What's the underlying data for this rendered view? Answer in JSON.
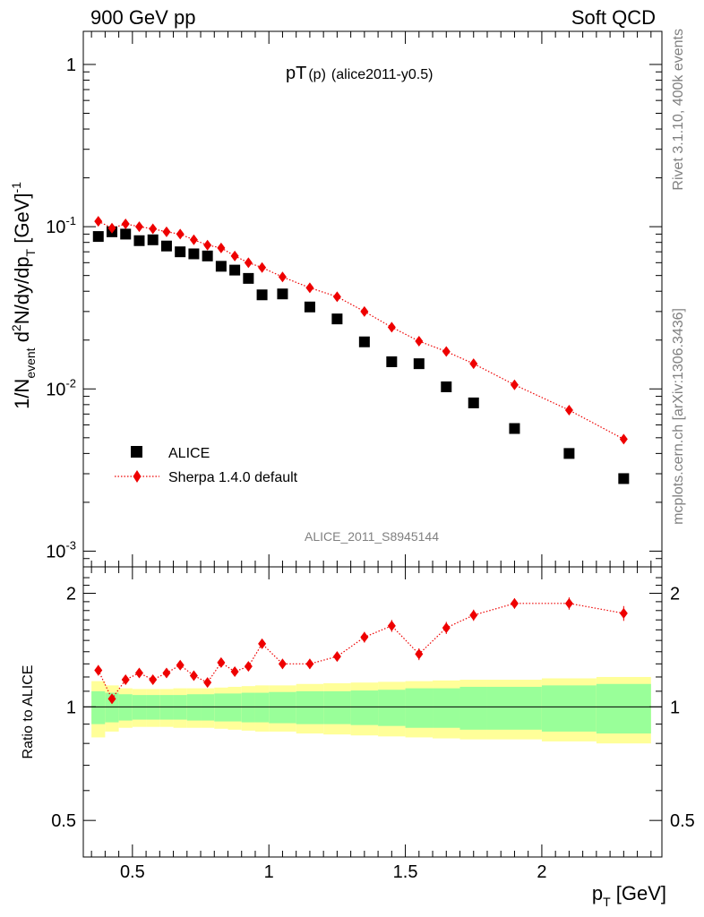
{
  "header": {
    "left": "900 GeV pp",
    "right": "Soft QCD"
  },
  "side": {
    "rivet": "Rivet 3.1.10,  400k events",
    "mcplots": "mcplots.cern.ch [arXiv:1306.3436]"
  },
  "chart_data": [
    {
      "type": "scatter",
      "title_main": "pT",
      "title_paren": "(p)",
      "title_rest": "(alice2011-y0.5)",
      "analysis_id": "ALICE_2011_S8945144",
      "ylabel": "1/N_event d²N/dy/dp_T [GeV]⁻¹",
      "ylabel_parts": {
        "main_a": "1/N",
        "sub_a": "event",
        "main_b": " d",
        "sup_b": "2",
        "main_c": "N/dy/dp",
        "sub_c": "T",
        "main_d": " [GeV]",
        "sup_d": "-1"
      },
      "yscale": "log",
      "ylim": [
        0.0008,
        1.6
      ],
      "xlim": [
        0.32,
        2.44
      ],
      "ytick_labels": [
        {
          "base": "10",
          "exp": "-3"
        },
        {
          "base": "10",
          "exp": "-2"
        },
        {
          "base": "10",
          "exp": "-1"
        },
        {
          "base": "1",
          "exp": ""
        }
      ],
      "legend_position": "lower-left",
      "series": [
        {
          "name": "ALICE",
          "marker": "square",
          "color": "#000000",
          "x": [
            0.375,
            0.425,
            0.475,
            0.525,
            0.575,
            0.625,
            0.675,
            0.725,
            0.775,
            0.825,
            0.875,
            0.925,
            0.975,
            1.05,
            1.15,
            1.25,
            1.35,
            1.45,
            1.55,
            1.65,
            1.75,
            1.9,
            2.1,
            2.3
          ],
          "y": [
            0.087,
            0.093,
            0.09,
            0.082,
            0.083,
            0.076,
            0.07,
            0.068,
            0.066,
            0.057,
            0.054,
            0.048,
            0.038,
            0.0385,
            0.032,
            0.027,
            0.0195,
            0.0147,
            0.0143,
            0.0103,
            0.0082,
            0.0057,
            0.004,
            0.0028
          ]
        },
        {
          "name": "Sherpa 1.4.0 default",
          "marker": "diamond",
          "color": "#ee0000",
          "linestyle": "dotted",
          "x": [
            0.375,
            0.425,
            0.475,
            0.525,
            0.575,
            0.625,
            0.675,
            0.725,
            0.775,
            0.825,
            0.875,
            0.925,
            0.975,
            1.05,
            1.15,
            1.25,
            1.35,
            1.45,
            1.55,
            1.65,
            1.75,
            1.9,
            2.1,
            2.3
          ],
          "y": [
            0.108,
            0.098,
            0.104,
            0.1,
            0.097,
            0.093,
            0.09,
            0.083,
            0.077,
            0.074,
            0.066,
            0.06,
            0.056,
            0.049,
            0.042,
            0.037,
            0.03,
            0.024,
            0.0197,
            0.017,
            0.0143,
            0.0106,
            0.0074,
            0.0049
          ]
        }
      ]
    },
    {
      "type": "scatter",
      "ylabel": "Ratio to ALICE",
      "xlabel_main": "p",
      "xlabel_sub": "T",
      "xlabel_unit": " [GeV]",
      "yscale": "log",
      "ylim": [
        0.4,
        2.35
      ],
      "xlim": [
        0.32,
        2.44
      ],
      "xticks": [
        0.5,
        1.0,
        1.5,
        2.0
      ],
      "xtick_labels": [
        "0.5",
        "1",
        "1.5",
        "2"
      ],
      "yticks": [
        0.5,
        1,
        2
      ],
      "ytick_labels": [
        "0.5",
        "1",
        "2"
      ],
      "reference_line": 1,
      "bins": {
        "edges": [
          0.35,
          0.4,
          0.45,
          0.5,
          0.55,
          0.6,
          0.65,
          0.7,
          0.75,
          0.8,
          0.85,
          0.9,
          0.95,
          1.0,
          1.1,
          1.2,
          1.3,
          1.4,
          1.5,
          1.6,
          1.7,
          1.8,
          2.0,
          2.2,
          2.4
        ],
        "stat_band": [
          0.1,
          0.09,
          0.08,
          0.075,
          0.075,
          0.075,
          0.075,
          0.08,
          0.08,
          0.085,
          0.085,
          0.09,
          0.09,
          0.095,
          0.1,
          0.1,
          0.105,
          0.11,
          0.12,
          0.12,
          0.13,
          0.13,
          0.14,
          0.15
        ],
        "total_band": [
          0.17,
          0.14,
          0.12,
          0.115,
          0.115,
          0.115,
          0.12,
          0.12,
          0.12,
          0.125,
          0.13,
          0.135,
          0.14,
          0.14,
          0.15,
          0.155,
          0.16,
          0.165,
          0.17,
          0.175,
          0.18,
          0.18,
          0.19,
          0.2
        ]
      },
      "band_colors": {
        "stat": "#99ff99",
        "total": "#ffff99"
      },
      "series": [
        {
          "name": "Sherpa 1.4.0 default / ALICE",
          "marker": "diamond",
          "color": "#ee0000",
          "x": [
            0.375,
            0.425,
            0.475,
            0.525,
            0.575,
            0.625,
            0.675,
            0.725,
            0.775,
            0.825,
            0.875,
            0.925,
            0.975,
            1.05,
            1.15,
            1.25,
            1.35,
            1.45,
            1.55,
            1.65,
            1.75,
            1.9,
            2.1,
            2.3
          ],
          "y": [
            1.25,
            1.05,
            1.18,
            1.23,
            1.18,
            1.23,
            1.29,
            1.21,
            1.16,
            1.31,
            1.24,
            1.28,
            1.47,
            1.3,
            1.3,
            1.36,
            1.53,
            1.64,
            1.38,
            1.62,
            1.75,
            1.88,
            1.88,
            1.77
          ],
          "err": [
            0.04,
            0.03,
            0.03,
            0.03,
            0.03,
            0.03,
            0.03,
            0.03,
            0.03,
            0.03,
            0.03,
            0.03,
            0.04,
            0.04,
            0.04,
            0.04,
            0.05,
            0.06,
            0.05,
            0.06,
            0.06,
            0.06,
            0.07,
            0.08
          ]
        }
      ]
    }
  ]
}
